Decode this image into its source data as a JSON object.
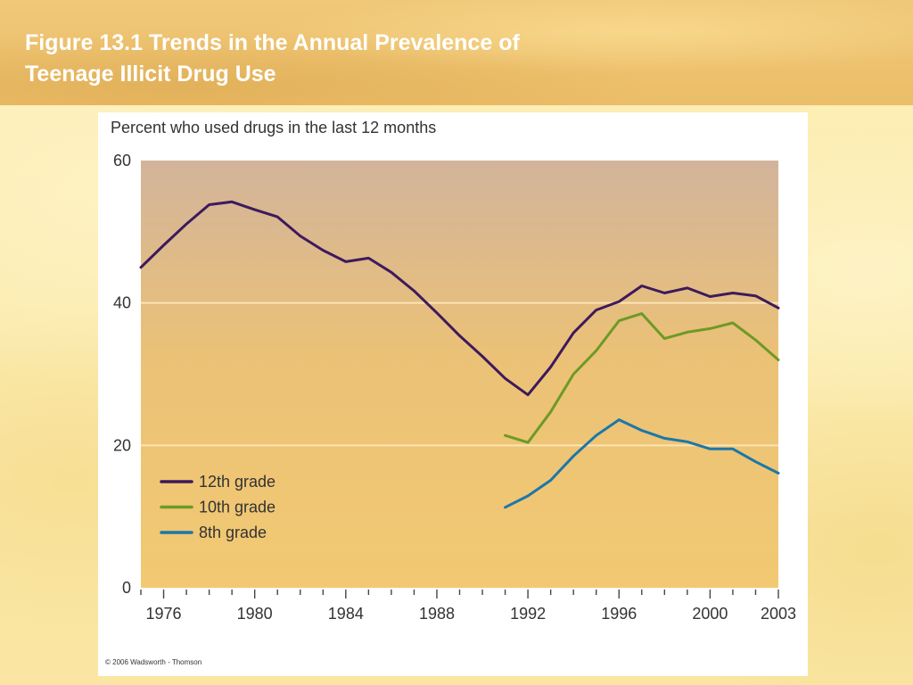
{
  "slide": {
    "title_line1": "Figure 13.1 Trends in the Annual Prevalence of",
    "title_line2": "Teenage Illicit Drug Use"
  },
  "figure": {
    "copyright": "© 2006 Wadsworth - Thomson"
  },
  "colors": {
    "banner": "#ebbd68",
    "plot_top": "#d2b49b",
    "plot_bottom": "#f2c972",
    "grid": "#fbe5b4",
    "twelfth": "#3d1a5c",
    "tenth": "#6d9a25",
    "eighth": "#1c77a8"
  },
  "chart_data": {
    "type": "line",
    "title": "",
    "ylabel": "Percent who used drugs in the last 12 months",
    "xlabel": "",
    "xlim": [
      1975,
      2003
    ],
    "ylim": [
      0,
      60
    ],
    "yticks": [
      0,
      20,
      40,
      60
    ],
    "xtick_labels": [
      1976,
      1980,
      1984,
      1988,
      1992,
      1996,
      2000,
      2003
    ],
    "grid": "horizontal",
    "legend": "lower-left",
    "series": [
      {
        "name": "12th grade",
        "color": "#3d1a5c",
        "x": [
          1975,
          1976,
          1977,
          1978,
          1979,
          1980,
          1981,
          1982,
          1983,
          1984,
          1985,
          1986,
          1987,
          1988,
          1989,
          1990,
          1991,
          1992,
          1993,
          1994,
          1995,
          1996,
          1997,
          1998,
          1999,
          2000,
          2001,
          2002,
          2003
        ],
        "y": [
          45.0,
          48.1,
          51.1,
          53.8,
          54.2,
          53.1,
          52.1,
          49.4,
          47.4,
          45.8,
          46.3,
          44.3,
          41.7,
          38.6,
          35.4,
          32.5,
          29.4,
          27.1,
          31.0,
          35.8,
          39.0,
          40.2,
          42.4,
          41.4,
          42.1,
          40.9,
          41.4,
          41.0,
          39.3
        ]
      },
      {
        "name": "10th grade",
        "color": "#6d9a25",
        "x": [
          1991,
          1992,
          1993,
          1994,
          1995,
          1996,
          1997,
          1998,
          1999,
          2000,
          2001,
          2002,
          2003
        ],
        "y": [
          21.4,
          20.4,
          24.7,
          30.0,
          33.3,
          37.5,
          38.5,
          35.0,
          35.9,
          36.4,
          37.2,
          34.8,
          32.0
        ]
      },
      {
        "name": "8th grade",
        "color": "#1c77a8",
        "x": [
          1991,
          1992,
          1993,
          1994,
          1995,
          1996,
          1997,
          1998,
          1999,
          2000,
          2001,
          2002,
          2003
        ],
        "y": [
          11.3,
          12.9,
          15.1,
          18.5,
          21.4,
          23.6,
          22.1,
          21.0,
          20.5,
          19.5,
          19.5,
          17.7,
          16.1
        ]
      }
    ]
  }
}
